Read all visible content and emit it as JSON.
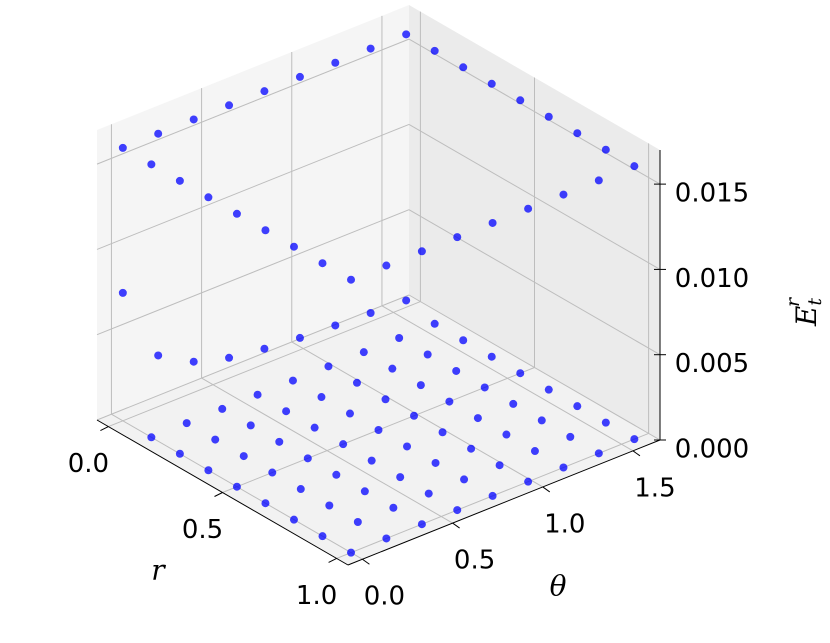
{
  "chart_data": {
    "type": "scatter3d",
    "xlabel": "r",
    "ylabel": "θ",
    "zlabel": {
      "base": "E",
      "sub": "t",
      "sup": "r"
    },
    "xlim": [
      -0.05,
      1.05
    ],
    "ylim": [
      -0.08,
      1.65
    ],
    "zlim": [
      0,
      0.017
    ],
    "xticks": [
      {
        "value": 0,
        "label": "0.0"
      },
      0.5,
      {
        "value": 1,
        "label": "1.0"
      }
    ],
    "yticks": [
      {
        "value": 0,
        "label": "0.0"
      },
      0.5,
      {
        "value": 1,
        "label": "1.0"
      },
      1.5
    ],
    "zticks": [
      {
        "value": 0,
        "label": "0.000"
      },
      {
        "value": 0.005,
        "label": "0.005"
      },
      {
        "value": 0.01,
        "label": "0.010"
      },
      {
        "value": 0.015,
        "label": "0.015"
      }
    ],
    "grid": true,
    "series": [
      {
        "color": "#0000ff",
        "x": [
          0,
          0,
          0,
          0,
          0,
          0,
          0,
          0,
          0,
          0.125,
          0.125,
          0.125,
          0.125,
          0.125,
          0.125,
          0.125,
          0.125,
          0.125,
          0.25,
          0.25,
          0.25,
          0.25,
          0.25,
          0.25,
          0.25,
          0.25,
          0.25,
          0.375,
          0.375,
          0.375,
          0.375,
          0.375,
          0.375,
          0.375,
          0.375,
          0.375,
          0.5,
          0.5,
          0.5,
          0.5,
          0.5,
          0.5,
          0.5,
          0.5,
          0.5,
          0.625,
          0.625,
          0.625,
          0.625,
          0.625,
          0.625,
          0.625,
          0.625,
          0.625,
          0.75,
          0.75,
          0.75,
          0.75,
          0.75,
          0.75,
          0.75,
          0.75,
          0.75,
          0.875,
          0.875,
          0.875,
          0.875,
          0.875,
          0.875,
          0.875,
          0.875,
          0.875,
          1,
          1,
          1,
          1,
          1,
          1,
          1,
          1,
          1
        ],
        "y": [
          0,
          0.196,
          0.393,
          0.589,
          0.785,
          0.982,
          1.178,
          1.374,
          1.571,
          0,
          0.196,
          0.393,
          0.589,
          0.785,
          0.982,
          1.178,
          1.374,
          1.571,
          0,
          0.196,
          0.393,
          0.589,
          0.785,
          0.982,
          1.178,
          1.374,
          1.571,
          0,
          0.196,
          0.393,
          0.589,
          0.785,
          0.982,
          1.178,
          1.374,
          1.571,
          0,
          0.196,
          0.393,
          0.589,
          0.785,
          0.982,
          1.178,
          1.374,
          1.571,
          0,
          0.196,
          0.393,
          0.589,
          0.785,
          0.982,
          1.178,
          1.374,
          1.571,
          0,
          0.196,
          0.393,
          0.589,
          0.785,
          0.982,
          1.178,
          1.374,
          1.571,
          0,
          0.196,
          0.393,
          0.589,
          0.785,
          0.982,
          1.178,
          1.374,
          1.571,
          0,
          0.196,
          0.393,
          0.589,
          0.785,
          0.982,
          1.178,
          1.374,
          1.571
        ],
        "z": [
          0.0075,
          0.003,
          0.0018,
          0.0012,
          0.0009,
          0.0007,
          0.0006,
          0.0005,
          0.0004,
          0,
          0,
          0,
          0,
          0,
          0,
          0,
          0,
          0,
          0,
          0,
          0,
          0,
          0,
          0,
          0,
          0,
          0,
          0,
          0,
          0,
          0,
          0,
          0,
          0,
          0,
          0,
          0,
          0,
          0,
          0,
          0,
          0,
          0,
          0,
          0,
          0,
          0,
          0,
          0,
          0,
          0,
          0,
          0,
          0,
          0,
          0,
          0,
          0,
          0,
          0,
          0,
          0,
          0,
          0,
          0,
          0,
          0,
          0,
          0,
          0,
          0,
          0,
          0,
          0,
          0,
          0,
          0,
          0,
          0,
          0,
          0
        ]
      },
      {
        "color": "#0000ff",
        "x": [
          0,
          0,
          0,
          0,
          0,
          0,
          0,
          0,
          0,
          0.125,
          0.25,
          0.375,
          0.5,
          0.625,
          0.75,
          0.875,
          1,
          1,
          1,
          1,
          1,
          1,
          1,
          1,
          1,
          0.875,
          0.75,
          0.625,
          0.5,
          0.375,
          0.25,
          0.125
        ],
        "y": [
          0,
          0.196,
          0.393,
          0.589,
          0.785,
          0.982,
          1.178,
          1.374,
          1.571,
          1.571,
          1.571,
          1.571,
          1.571,
          1.571,
          1.571,
          1.571,
          1.571,
          1.374,
          1.178,
          0.982,
          0.785,
          0.589,
          0.393,
          0.196,
          0,
          0,
          0,
          0,
          0,
          0,
          0,
          0
        ],
        "z": [
          0.016,
          0.016,
          0.016,
          0.016,
          0.016,
          0.016,
          0.016,
          0.016,
          0.016,
          0.016,
          0.016,
          0.016,
          0.016,
          0.016,
          0.016,
          0.016,
          0.016,
          0.016,
          0.016,
          0.016,
          0.016,
          0.016,
          0.016,
          0.016,
          0.016,
          0.016,
          0.016,
          0.016,
          0.016,
          0.016,
          0.016,
          0.016
        ]
      }
    ]
  }
}
